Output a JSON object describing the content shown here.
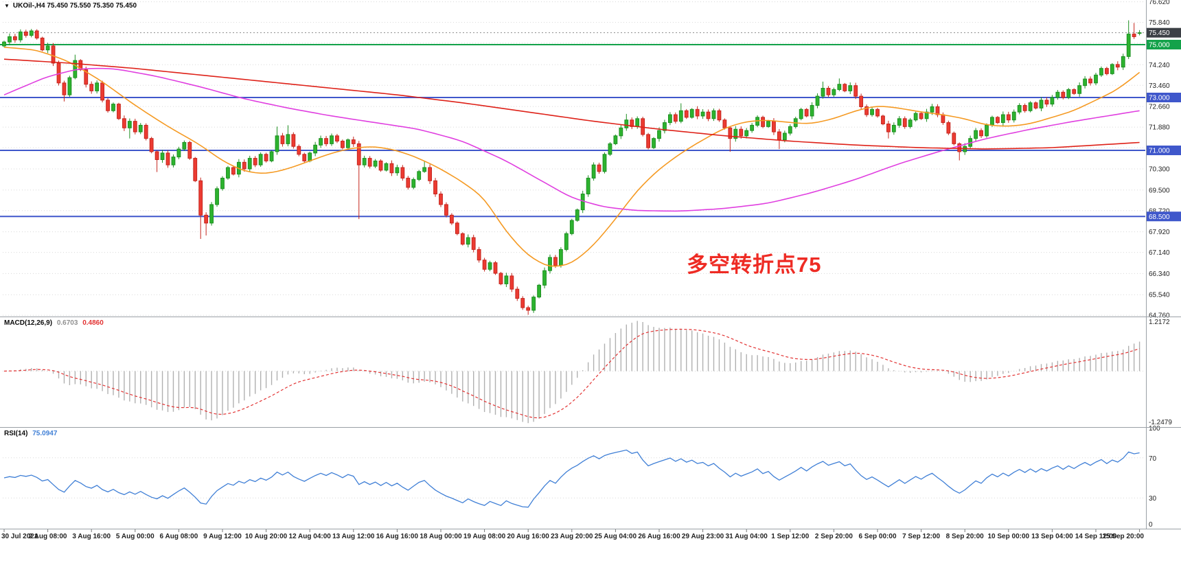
{
  "header": {
    "symbol_readout": "UKOil-,H4 75.450 75.550 75.350 75.450"
  },
  "icons": {
    "symbol_marker": "▼"
  },
  "chart_data": {
    "type": "candlestick",
    "symbol": "UKOil-",
    "timeframe": "H4",
    "ohlc": {
      "open": "75.450",
      "high": "75.550",
      "low": "75.350",
      "close": "75.450"
    },
    "colors": {
      "up": "#2db32f",
      "up_border": "#1d8f21",
      "down": "#ec3b32",
      "down_border": "#c5251d",
      "grid": "#d8d8d8",
      "separator": "#9aa0a6",
      "axis_text": "#1f1f1f",
      "ma_fast": "#f59a23",
      "ma_mid": "#e03fe0",
      "ma_slow": "#de2118",
      "hline_blue": "#3f57cb",
      "hline_green": "#13a24a",
      "bid_badge": "#3c4046",
      "bid_line": "#8a8a8a",
      "macd_hist": "#b0b0b0",
      "macd_signal": "#e23232",
      "rsi": "#3f7fd6",
      "macd_value_text": "#909090"
    },
    "price_axis": {
      "labels": [
        "76.620",
        "75.840",
        "75.060",
        "74.240",
        "73.460",
        "72.660",
        "71.880",
        "71.100",
        "70.300",
        "69.500",
        "68.720",
        "67.920",
        "67.140",
        "66.340",
        "65.540",
        "64.760"
      ]
    },
    "hlines": [
      {
        "price": 75.0,
        "label": "75.000",
        "color": "#13a24a"
      },
      {
        "price": 73.0,
        "label": "73.000",
        "color": "#3f57cb"
      },
      {
        "price": 71.0,
        "label": "71.000",
        "color": "#3f57cb"
      },
      {
        "price": 68.5,
        "label": "68.500",
        "color": "#3f57cb"
      }
    ],
    "bid_line": {
      "price": 75.45,
      "label": "75.450"
    },
    "time_axis": {
      "bars_per_tick": 8,
      "labels": [
        "30 Jul 2021",
        "2 Aug 08:00",
        "3 Aug 16:00",
        "5 Aug 00:00",
        "6 Aug 08:00",
        "9 Aug 12:00",
        "10 Aug 20:00",
        "12 Aug 04:00",
        "13 Aug 12:00",
        "16 Aug 16:00",
        "18 Aug 00:00",
        "19 Aug 08:00",
        "20 Aug 16:00",
        "23 Aug 20:00",
        "25 Aug 04:00",
        "26 Aug 16:00",
        "29 Aug 23:00",
        "31 Aug 04:00",
        "1 Sep 12:00",
        "2 Sep 20:00",
        "6 Sep 00:00",
        "7 Sep 12:00",
        "8 Sep 20:00",
        "10 Sep 00:00",
        "13 Sep 04:00",
        "14 Sep 12:00",
        "15 Sep 20:00"
      ]
    },
    "candles": {
      "open_first": 74.95,
      "wick_base": 0.05,
      "wick_amp": 0.07,
      "closes": [
        75.1,
        75.3,
        75.18,
        75.48,
        75.35,
        75.52,
        75.25,
        74.8,
        74.95,
        74.3,
        73.55,
        73.1,
        73.75,
        74.4,
        74.05,
        73.5,
        73.25,
        73.55,
        72.9,
        72.5,
        72.75,
        72.2,
        71.85,
        72.1,
        71.7,
        71.95,
        71.45,
        70.95,
        70.65,
        70.9,
        70.45,
        70.75,
        71.05,
        71.3,
        70.7,
        69.85,
        68.55,
        68.25,
        68.95,
        69.55,
        69.95,
        70.35,
        70.1,
        70.55,
        70.3,
        70.7,
        70.45,
        70.85,
        70.6,
        70.95,
        71.55,
        71.25,
        71.6,
        71.15,
        70.85,
        70.6,
        70.9,
        71.2,
        71.45,
        71.25,
        71.55,
        71.35,
        71.1,
        71.4,
        71.25,
        70.45,
        70.7,
        70.4,
        70.6,
        70.25,
        70.5,
        70.15,
        70.35,
        69.95,
        69.6,
        69.9,
        70.2,
        70.35,
        69.85,
        69.35,
        68.95,
        68.55,
        68.25,
        67.85,
        67.45,
        67.7,
        67.25,
        66.85,
        66.5,
        66.75,
        66.35,
        65.95,
        66.25,
        65.75,
        65.4,
        65.05,
        64.95,
        65.45,
        65.9,
        66.45,
        66.95,
        66.65,
        67.25,
        67.85,
        68.35,
        68.75,
        69.35,
        69.95,
        70.45,
        70.2,
        70.85,
        71.25,
        71.55,
        71.85,
        72.15,
        71.9,
        72.2,
        71.6,
        71.1,
        71.45,
        71.75,
        72.05,
        72.35,
        72.1,
        72.5,
        72.25,
        72.55,
        72.3,
        72.45,
        72.2,
        72.5,
        72.15,
        71.85,
        71.45,
        71.8,
        71.55,
        71.75,
        71.95,
        72.25,
        71.9,
        72.1,
        71.7,
        71.4,
        71.65,
        71.9,
        72.2,
        72.55,
        72.3,
        72.7,
        73.05,
        73.35,
        73.1,
        73.3,
        73.5,
        73.25,
        73.45,
        73.05,
        72.65,
        72.35,
        72.55,
        72.3,
        72.0,
        71.7,
        71.95,
        72.2,
        71.9,
        72.15,
        72.4,
        72.2,
        72.45,
        72.65,
        72.35,
        72.05,
        71.65,
        71.25,
        70.95,
        71.15,
        71.45,
        71.75,
        71.55,
        71.95,
        72.25,
        72.05,
        72.35,
        72.15,
        72.45,
        72.7,
        72.5,
        72.8,
        72.6,
        72.9,
        72.75,
        73.0,
        73.2,
        73.0,
        73.3,
        73.15,
        73.45,
        73.7,
        73.55,
        73.85,
        74.1,
        73.9,
        74.25,
        74.15,
        74.55,
        75.4,
        75.3,
        75.45
      ],
      "special_bars": {
        "11": {
          "low": 72.85
        },
        "13": {
          "high": 74.62
        },
        "23": {
          "low": 71.45
        },
        "28": {
          "low": 70.18
        },
        "36": {
          "low": 67.65
        },
        "37": {
          "low": 67.78
        },
        "50": {
          "high": 71.9
        },
        "52": {
          "high": 71.95
        },
        "65": {
          "low": 68.4
        },
        "77": {
          "high": 70.6
        },
        "96": {
          "low": 64.78
        },
        "97": {
          "low": 64.85
        },
        "114": {
          "high": 72.38
        },
        "124": {
          "high": 72.78
        },
        "133": {
          "low": 70.95
        },
        "142": {
          "low": 71.05
        },
        "150": {
          "high": 73.6
        },
        "153": {
          "high": 73.72
        },
        "162": {
          "low": 71.45
        },
        "175": {
          "low": 70.62
        },
        "206": {
          "high": 75.92
        },
        "207": {
          "high": 75.82
        },
        "208": {
          "open": 75.45,
          "high": 75.55,
          "low": 75.35
        }
      }
    },
    "ma_lines": [
      {
        "name": "ma-fast-orange",
        "color": "#f59a23",
        "points": [
          [
            0,
            74.9
          ],
          [
            6,
            74.8
          ],
          [
            12,
            74.35
          ],
          [
            18,
            73.6
          ],
          [
            24,
            72.7
          ],
          [
            30,
            71.9
          ],
          [
            36,
            71.2
          ],
          [
            40,
            70.6
          ],
          [
            44,
            70.2
          ],
          [
            48,
            70.1
          ],
          [
            52,
            70.3
          ],
          [
            56,
            70.6
          ],
          [
            60,
            70.9
          ],
          [
            64,
            71.1
          ],
          [
            68,
            71.15
          ],
          [
            72,
            71.0
          ],
          [
            76,
            70.7
          ],
          [
            80,
            70.3
          ],
          [
            84,
            69.8
          ],
          [
            88,
            69.2
          ],
          [
            92,
            67.9
          ],
          [
            96,
            67.0
          ],
          [
            100,
            66.55
          ],
          [
            104,
            66.7
          ],
          [
            108,
            67.4
          ],
          [
            112,
            68.4
          ],
          [
            116,
            69.5
          ],
          [
            120,
            70.3
          ],
          [
            124,
            70.9
          ],
          [
            128,
            71.4
          ],
          [
            132,
            71.85
          ],
          [
            136,
            72.1
          ],
          [
            140,
            72.15
          ],
          [
            144,
            72.05
          ],
          [
            148,
            72.0
          ],
          [
            152,
            72.2
          ],
          [
            156,
            72.5
          ],
          [
            160,
            72.7
          ],
          [
            164,
            72.6
          ],
          [
            168,
            72.45
          ],
          [
            172,
            72.35
          ],
          [
            176,
            72.2
          ],
          [
            180,
            71.95
          ],
          [
            184,
            71.9
          ],
          [
            188,
            72.0
          ],
          [
            192,
            72.25
          ],
          [
            196,
            72.5
          ],
          [
            200,
            72.9
          ],
          [
            204,
            73.3
          ],
          [
            208,
            73.95
          ]
        ]
      },
      {
        "name": "ma-mid-magenta",
        "color": "#e03fe0",
        "points": [
          [
            0,
            73.1
          ],
          [
            8,
            73.8
          ],
          [
            14,
            74.1
          ],
          [
            20,
            74.1
          ],
          [
            28,
            73.8
          ],
          [
            36,
            73.4
          ],
          [
            44,
            72.95
          ],
          [
            52,
            72.6
          ],
          [
            60,
            72.3
          ],
          [
            68,
            72.05
          ],
          [
            76,
            71.8
          ],
          [
            84,
            71.35
          ],
          [
            92,
            70.6
          ],
          [
            98,
            69.9
          ],
          [
            104,
            69.2
          ],
          [
            110,
            68.85
          ],
          [
            116,
            68.72
          ],
          [
            124,
            68.7
          ],
          [
            132,
            68.8
          ],
          [
            140,
            69.0
          ],
          [
            148,
            69.4
          ],
          [
            156,
            69.9
          ],
          [
            164,
            70.5
          ],
          [
            172,
            71.0
          ],
          [
            180,
            71.45
          ],
          [
            188,
            71.8
          ],
          [
            196,
            72.1
          ],
          [
            202,
            72.3
          ],
          [
            208,
            72.5
          ]
        ]
      },
      {
        "name": "ma-slow-red",
        "color": "#de2118",
        "points": [
          [
            0,
            74.45
          ],
          [
            12,
            74.3
          ],
          [
            24,
            74.1
          ],
          [
            36,
            73.85
          ],
          [
            48,
            73.6
          ],
          [
            60,
            73.35
          ],
          [
            72,
            73.1
          ],
          [
            84,
            72.8
          ],
          [
            96,
            72.45
          ],
          [
            108,
            72.1
          ],
          [
            120,
            71.8
          ],
          [
            132,
            71.55
          ],
          [
            144,
            71.35
          ],
          [
            156,
            71.2
          ],
          [
            168,
            71.1
          ],
          [
            180,
            71.05
          ],
          [
            192,
            71.1
          ],
          [
            200,
            71.2
          ],
          [
            208,
            71.3
          ]
        ]
      }
    ],
    "macd": {
      "label": "MACD(12,26,9)",
      "main_value": "0.6703",
      "signal_value": "0.4860",
      "scale_top": "1.2172",
      "scale_bottom": "-1.2479",
      "fast": 12,
      "slow": 26,
      "signal": 9
    },
    "rsi": {
      "label": "RSI(14)",
      "value": "75.0947",
      "period": 14,
      "levels": [
        70,
        30
      ],
      "scale_labels": [
        "100",
        "70",
        "30",
        "0"
      ]
    },
    "annotation": {
      "text": "多空转折点75",
      "color": "#ee2b24"
    }
  }
}
